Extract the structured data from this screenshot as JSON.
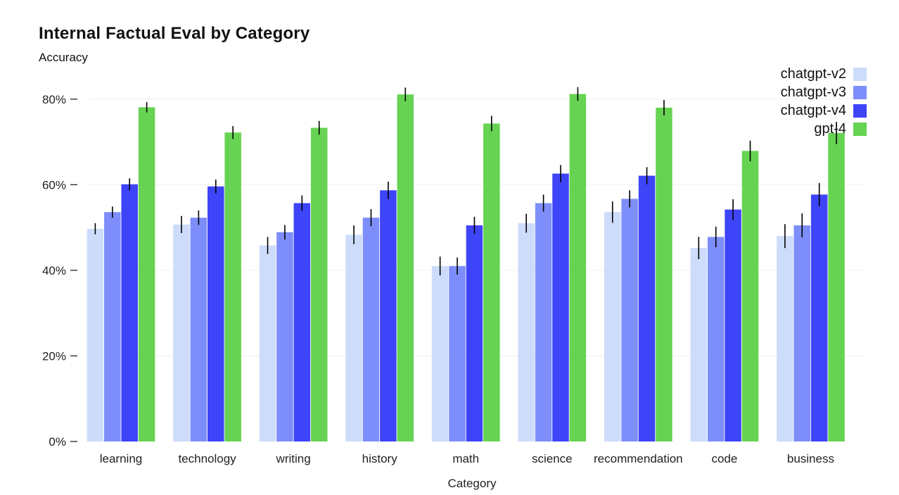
{
  "chart_data": {
    "type": "bar",
    "title": "Internal Factual Eval by Category",
    "subtitle": "Accuracy",
    "xlabel": "Category",
    "ylabel": "",
    "ylim": [
      0,
      0.9
    ],
    "yticks": [
      0,
      0.2,
      0.4,
      0.6,
      0.8
    ],
    "ytick_labels": [
      "0%",
      "20%",
      "40%",
      "60%",
      "80%"
    ],
    "grid": true,
    "legend_position": "top-right",
    "categories": [
      "learning",
      "technology",
      "writing",
      "history",
      "math",
      "science",
      "recommendation",
      "code",
      "business"
    ],
    "series": [
      {
        "name": "chatgpt-v2",
        "color": "#cddcfb",
        "values": [
          0.497,
          0.507,
          0.458,
          0.483,
          0.41,
          0.51,
          0.536,
          0.452,
          0.48
        ],
        "errors": [
          0.013,
          0.02,
          0.02,
          0.022,
          0.022,
          0.022,
          0.025,
          0.026,
          0.028
        ]
      },
      {
        "name": "chatgpt-v3",
        "color": "#7d8efa",
        "values": [
          0.536,
          0.523,
          0.489,
          0.523,
          0.41,
          0.557,
          0.567,
          0.478,
          0.505
        ],
        "errors": [
          0.013,
          0.017,
          0.017,
          0.02,
          0.02,
          0.02,
          0.02,
          0.024,
          0.028
        ]
      },
      {
        "name": "chatgpt-v4",
        "color": "#3e44f8",
        "values": [
          0.601,
          0.596,
          0.557,
          0.587,
          0.505,
          0.626,
          0.621,
          0.542,
          0.577
        ],
        "errors": [
          0.014,
          0.016,
          0.018,
          0.02,
          0.02,
          0.02,
          0.02,
          0.024,
          0.027
        ]
      },
      {
        "name": "gpt-4",
        "color": "#67d353",
        "values": [
          0.781,
          0.722,
          0.733,
          0.811,
          0.743,
          0.812,
          0.78,
          0.679,
          0.721
        ],
        "errors": [
          0.012,
          0.015,
          0.016,
          0.016,
          0.018,
          0.016,
          0.018,
          0.024,
          0.026
        ]
      }
    ]
  }
}
